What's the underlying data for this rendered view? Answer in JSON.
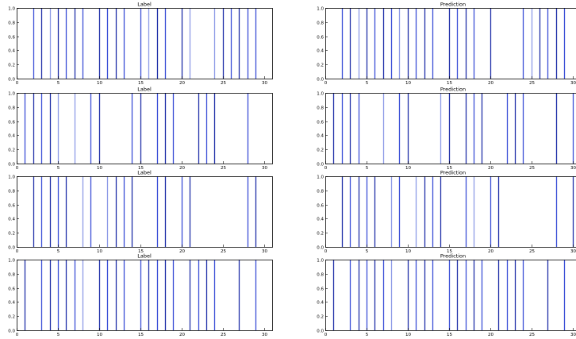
{
  "chart_data": [
    {
      "type": "bar",
      "title": "Label",
      "xlim": [
        0,
        31
      ],
      "ylim": [
        0,
        1.0
      ],
      "xticks": [
        "0",
        "5",
        "10",
        "15",
        "20",
        "25",
        "30"
      ],
      "yticks": [
        "0.0",
        "0.2",
        "0.4",
        "0.6",
        "0.8",
        "1.0"
      ],
      "x": [
        2,
        3,
        4,
        5,
        6,
        7,
        8,
        10,
        11,
        12,
        13,
        15,
        16,
        17,
        18,
        20,
        21,
        24,
        25,
        26,
        27,
        28,
        29
      ],
      "values": [
        1,
        1,
        1,
        1,
        1,
        1,
        1,
        1,
        1,
        1,
        1,
        1,
        1,
        1,
        1,
        1,
        1,
        1,
        1,
        1,
        1,
        1,
        1
      ],
      "colors": [
        "#3a4fd6",
        "#1f2fa8",
        "#8c9ae6",
        "#1f2fa8",
        "#3a4fd6",
        "#1f2fa8",
        "#3a4fd6",
        "#1f2fa8",
        "#3a4fd6",
        "#1f2fa8",
        "#3a4fd6",
        "#3a4fd6",
        "#8c9ae6",
        "#1f2fa8",
        "#3a4fd6",
        "#1f2fa8",
        "#8c9ae6",
        "#8c9ae6",
        "#1f2fa8",
        "#3a4fd6",
        "#1f2fa8",
        "#3a4fd6",
        "#3a4fd6"
      ]
    },
    {
      "type": "bar",
      "title": "Prediction",
      "xlim": [
        0,
        31
      ],
      "ylim": [
        0,
        1.0
      ],
      "xticks": [
        "0",
        "5",
        "10",
        "15",
        "20",
        "25",
        "30"
      ],
      "yticks": [
        "0.0",
        "0.2",
        "0.4",
        "0.6",
        "0.8",
        "1.0"
      ],
      "x": [
        2,
        3,
        4,
        5,
        6,
        7,
        8,
        9,
        10,
        11,
        12,
        13,
        15,
        16,
        17,
        18,
        20,
        24,
        25,
        26,
        27,
        28,
        29
      ],
      "values": [
        1,
        1,
        1,
        1,
        1,
        1,
        1,
        1,
        1,
        1,
        1,
        1,
        1,
        1,
        1,
        1,
        1,
        1,
        1,
        1,
        1,
        1,
        1
      ],
      "colors": [
        "#3a4fd6",
        "#1f2fa8",
        "#8c9ae6",
        "#1f2fa8",
        "#3a4fd6",
        "#1f2fa8",
        "#3a4fd6",
        "#8c9ae6",
        "#1f2fa8",
        "#3a4fd6",
        "#1f2fa8",
        "#3a4fd6",
        "#1f2fa8",
        "#3a4fd6",
        "#1f2fa8",
        "#3a4fd6",
        "#1f2fa8",
        "#3a4fd6",
        "#8c9ae6",
        "#1f2fa8",
        "#3a4fd6",
        "#1f2fa8",
        "#3a4fd6"
      ]
    },
    {
      "type": "bar",
      "title": "Label",
      "xlim": [
        0,
        31
      ],
      "ylim": [
        0,
        1.0
      ],
      "xticks": [
        "0",
        "5",
        "10",
        "15",
        "20",
        "25",
        "30"
      ],
      "yticks": [
        "0.0",
        "0.2",
        "0.4",
        "0.6",
        "0.8",
        "1.0"
      ],
      "x": [
        1,
        2,
        3,
        4,
        5,
        7,
        9,
        10,
        14,
        15,
        17,
        18,
        19,
        22,
        23,
        24,
        28
      ],
      "values": [
        1,
        1,
        1,
        1,
        1,
        1,
        1,
        1,
        1,
        1,
        1,
        1,
        1,
        1,
        1,
        1,
        1
      ],
      "colors": [
        "#3a4fd6",
        "#1f2fa8",
        "#3a4fd6",
        "#1f2fa8",
        "#8c9ae6",
        "#8c9ae6",
        "#3a4fd6",
        "#1f2fa8",
        "#3a4fd6",
        "#1f2fa8",
        "#3a4fd6",
        "#1f2fa8",
        "#3a4fd6",
        "#1f2fa8",
        "#3a4fd6",
        "#1f2fa8",
        "#3a4fd6"
      ]
    },
    {
      "type": "bar",
      "title": "Prediction",
      "xlim": [
        0,
        31
      ],
      "ylim": [
        0,
        1.0
      ],
      "xticks": [
        "0",
        "5",
        "10",
        "15",
        "20",
        "25",
        "30"
      ],
      "yticks": [
        "0.0",
        "0.2",
        "0.4",
        "0.6",
        "0.8",
        "1.0"
      ],
      "x": [
        1,
        2,
        3,
        4,
        7,
        9,
        10,
        14,
        15,
        17,
        18,
        19,
        22,
        23,
        24,
        28,
        30
      ],
      "values": [
        1,
        1,
        1,
        1,
        1,
        1,
        1,
        1,
        1,
        1,
        1,
        1,
        1,
        1,
        1,
        1,
        1
      ],
      "colors": [
        "#1f2fa8",
        "#3a4fd6",
        "#1f2fa8",
        "#3a4fd6",
        "#8c9ae6",
        "#3a4fd6",
        "#1f2fa8",
        "#8c9ae6",
        "#1f2fa8",
        "#1f2fa8",
        "#3a4fd6",
        "#1f2fa8",
        "#3a4fd6",
        "#1f2fa8",
        "#3a4fd6",
        "#1f2fa8",
        "#3a4fd6"
      ]
    },
    {
      "type": "bar",
      "title": "Label",
      "xlim": [
        0,
        31
      ],
      "ylim": [
        0,
        1.0
      ],
      "xticks": [
        "0",
        "5",
        "10",
        "15",
        "20",
        "25",
        "30"
      ],
      "yticks": [
        "0.0",
        "0.2",
        "0.4",
        "0.6",
        "0.8",
        "1.0"
      ],
      "x": [
        2,
        3,
        4,
        5,
        6,
        8,
        9,
        11,
        12,
        13,
        14,
        17,
        18,
        20,
        21,
        28,
        29
      ],
      "values": [
        1,
        1,
        1,
        1,
        1,
        1,
        1,
        1,
        1,
        1,
        1,
        1,
        1,
        1,
        1,
        1,
        1
      ],
      "colors": [
        "#1f2fa8",
        "#3a4fd6",
        "#1f2fa8",
        "#3a4fd6",
        "#1f2fa8",
        "#8c9ae6",
        "#3a4fd6",
        "#8c9ae6",
        "#1f2fa8",
        "#3a4fd6",
        "#1f2fa8",
        "#3a4fd6",
        "#1f2fa8",
        "#3a4fd6",
        "#1f2fa8",
        "#3a4fd6",
        "#1f2fa8"
      ]
    },
    {
      "type": "bar",
      "title": "Prediction",
      "xlim": [
        0,
        31
      ],
      "ylim": [
        0,
        1.0
      ],
      "xticks": [
        "0",
        "5",
        "10",
        "15",
        "20",
        "25",
        "30"
      ],
      "yticks": [
        "0.0",
        "0.2",
        "0.4",
        "0.6",
        "0.8",
        "1.0"
      ],
      "x": [
        2,
        3,
        4,
        5,
        6,
        8,
        9,
        11,
        12,
        13,
        14,
        17,
        18,
        20,
        21,
        28,
        30
      ],
      "values": [
        1,
        1,
        1,
        1,
        1,
        1,
        1,
        1,
        1,
        1,
        1,
        1,
        1,
        1,
        1,
        1,
        1
      ],
      "colors": [
        "#1f2fa8",
        "#3a4fd6",
        "#1f2fa8",
        "#3a4fd6",
        "#1f2fa8",
        "#8c9ae6",
        "#3a4fd6",
        "#8c9ae6",
        "#1f2fa8",
        "#3a4fd6",
        "#1f2fa8",
        "#3a4fd6",
        "#8c9ae6",
        "#3a4fd6",
        "#1f2fa8",
        "#3a4fd6",
        "#1f2fa8"
      ]
    },
    {
      "type": "bar",
      "title": "Label",
      "xlim": [
        0,
        31
      ],
      "ylim": [
        0,
        1.0
      ],
      "xticks": [
        "0",
        "5",
        "10",
        "15",
        "20",
        "25",
        "30"
      ],
      "yticks": [
        "0.0",
        "0.2",
        "0.4",
        "0.6",
        "0.8",
        "1.0"
      ],
      "x": [
        1,
        3,
        4,
        5,
        6,
        7,
        8,
        10,
        11,
        12,
        13,
        15,
        16,
        17,
        18,
        19,
        21,
        22,
        23,
        24,
        27,
        29
      ],
      "values": [
        1,
        1,
        1,
        1,
        1,
        1,
        1,
        1,
        1,
        1,
        1,
        1,
        1,
        1,
        1,
        1,
        1,
        1,
        1,
        1,
        1,
        1
      ],
      "colors": [
        "#1f2fa8",
        "#3a4fd6",
        "#1f2fa8",
        "#3a4fd6",
        "#1f2fa8",
        "#3a4fd6",
        "#8c9ae6",
        "#1f2fa8",
        "#3a4fd6",
        "#1f2fa8",
        "#3a4fd6",
        "#3a4fd6",
        "#1f2fa8",
        "#3a4fd6",
        "#1f2fa8",
        "#3a4fd6",
        "#1f2fa8",
        "#3a4fd6",
        "#1f2fa8",
        "#3a4fd6",
        "#1f2fa8",
        "#3a4fd6"
      ]
    },
    {
      "type": "bar",
      "title": "Prediction",
      "xlim": [
        0,
        31
      ],
      "ylim": [
        0,
        1.0
      ],
      "xticks": [
        "0",
        "5",
        "10",
        "15",
        "20",
        "25",
        "30"
      ],
      "yticks": [
        "0.0",
        "0.2",
        "0.4",
        "0.6",
        "0.8",
        "1.0"
      ],
      "x": [
        1,
        3,
        4,
        5,
        6,
        7,
        8,
        10,
        11,
        12,
        13,
        15,
        16,
        17,
        18,
        19,
        21,
        22,
        23,
        24,
        27,
        29
      ],
      "values": [
        1,
        1,
        1,
        1,
        1,
        1,
        1,
        1,
        1,
        1,
        1,
        1,
        1,
        1,
        1,
        1,
        1,
        1,
        1,
        1,
        1,
        1
      ],
      "colors": [
        "#1f2fa8",
        "#3a4fd6",
        "#1f2fa8",
        "#3a4fd6",
        "#1f2fa8",
        "#3a4fd6",
        "#8c9ae6",
        "#1f2fa8",
        "#3a4fd6",
        "#1f2fa8",
        "#3a4fd6",
        "#3a4fd6",
        "#1f2fa8",
        "#3a4fd6",
        "#1f2fa8",
        "#3a4fd6",
        "#1f2fa8",
        "#3a4fd6",
        "#1f2fa8",
        "#3a4fd6",
        "#1f2fa8",
        "#3a4fd6"
      ]
    }
  ]
}
